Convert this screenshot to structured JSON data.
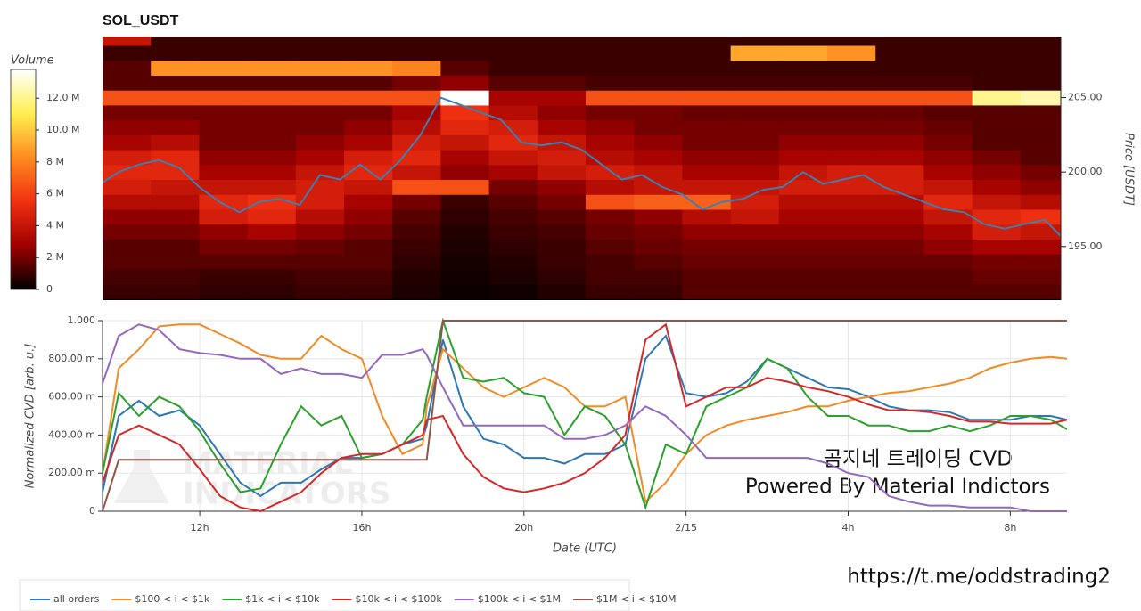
{
  "chart_data": [
    {
      "type": "heatmap",
      "title": "SOL_USDT",
      "y_label": "Price [USDT]",
      "xlim": [
        9.6,
        33.4
      ],
      "ylim": [
        191.4,
        209.1
      ],
      "yticks": [
        {
          "value": 195,
          "label": "195.00"
        },
        {
          "value": 200,
          "label": "200.00"
        },
        {
          "value": 205,
          "label": "205.00"
        }
      ],
      "x_bins": [
        9.6,
        10.8,
        12,
        13.2,
        14.4,
        15.6,
        16.8,
        18,
        19.2,
        20.4,
        21.6,
        22.8,
        24,
        25.2,
        26.4,
        27.6,
        28.8,
        30,
        31.2,
        32.4,
        33.6
      ],
      "y_bins": [
        191.5,
        192.5,
        193.5,
        194.5,
        195.5,
        196.5,
        197.5,
        198.5,
        199.5,
        200.5,
        201.5,
        202.5,
        203.5,
        204.5,
        205.5,
        206.5,
        207.5,
        208.5,
        209.5
      ],
      "z": [
        [
          1,
          1,
          0.8,
          0.8,
          1,
          1,
          0.5,
          0.2,
          0.3,
          0.6,
          1,
          1,
          1.5,
          1.5,
          1.5,
          1.5,
          1.5,
          1.5,
          1.5,
          1.5
        ],
        [
          1.2,
          1.2,
          1,
          1,
          1.2,
          1.2,
          0.6,
          0.3,
          0.5,
          0.8,
          1.2,
          1.2,
          1.5,
          1.5,
          1.5,
          1.5,
          1.5,
          1.5,
          1.8,
          1.8
        ],
        [
          1.5,
          1.5,
          1.5,
          1.5,
          1.5,
          1.5,
          0.8,
          0.4,
          0.6,
          1,
          1.2,
          1.5,
          1.8,
          1.8,
          1.8,
          1.8,
          1.8,
          1.8,
          2,
          2
        ],
        [
          1.5,
          1.5,
          2,
          2,
          1.8,
          1.5,
          1,
          0.5,
          0.8,
          1,
          1.5,
          1.8,
          2,
          2,
          2,
          2,
          2,
          2.5,
          3,
          3
        ],
        [
          2,
          2,
          2.5,
          3,
          2.5,
          2,
          1.2,
          0.6,
          1,
          1.2,
          1.8,
          2,
          2.5,
          2.5,
          2.5,
          2.5,
          2.5,
          3,
          4.5,
          4
        ],
        [
          2.5,
          2.5,
          4.5,
          5,
          3.5,
          2.5,
          1.5,
          0.8,
          1.2,
          1.5,
          2,
          2.5,
          3.5,
          4,
          3,
          3,
          3,
          4,
          5,
          5.5
        ],
        [
          3.5,
          3.5,
          5,
          5.5,
          4.5,
          3,
          2,
          1,
          1.5,
          2,
          6.5,
          7,
          7,
          4.5,
          3.5,
          3.5,
          3.5,
          5,
          4,
          3.5
        ],
        [
          4.5,
          4,
          4,
          4,
          4.5,
          4,
          6.5,
          6.5,
          2,
          2.5,
          3.5,
          4,
          4,
          4,
          4.5,
          4.5,
          4.5,
          4,
          3,
          2.5
        ],
        [
          5,
          5,
          3,
          3,
          4,
          5,
          4,
          2.5,
          3,
          4,
          4.5,
          4,
          3,
          3,
          4,
          4.5,
          4.5,
          3,
          2.5,
          2
        ],
        [
          4.5,
          5,
          2.5,
          2.5,
          3,
          4.5,
          5,
          3,
          4,
          4.5,
          3.5,
          3,
          2.5,
          2.5,
          3,
          3,
          3,
          2.5,
          2,
          1.5
        ],
        [
          3,
          3.5,
          2,
          2,
          2.5,
          3,
          4.5,
          4,
          5,
          4,
          3,
          2.5,
          2,
          2,
          2.5,
          2.5,
          2.5,
          2,
          1.5,
          1.5
        ],
        [
          2.5,
          2.5,
          2,
          2,
          2,
          2.5,
          3.5,
          5,
          4.5,
          3,
          2.5,
          2,
          2,
          2,
          2,
          2,
          2,
          1.8,
          1.5,
          1.5
        ],
        [
          2,
          2,
          2,
          2,
          2,
          2,
          3,
          5.5,
          3.5,
          2.5,
          2,
          2,
          1.8,
          1.8,
          1.8,
          1.8,
          1.8,
          1.5,
          1.5,
          1.5
        ],
        [
          6.5,
          6.5,
          6.5,
          6.5,
          6.5,
          6.5,
          6.5,
          13.8,
          3,
          3,
          6.5,
          6.5,
          6.5,
          6.5,
          6.5,
          6.5,
          6.5,
          6.5,
          12,
          12.5
        ],
        [
          1.5,
          1.5,
          1.5,
          1.5,
          1.5,
          1.5,
          2,
          2.5,
          1.5,
          1.5,
          1.2,
          1.2,
          1.2,
          1.2,
          1.2,
          1.2,
          1.2,
          1.2,
          1,
          1
        ],
        [
          1.5,
          8.5,
          8.5,
          8.5,
          8.5,
          8.5,
          8,
          1.5,
          1,
          1,
          1,
          1,
          1,
          1,
          1,
          1,
          1,
          1,
          1,
          1
        ],
        [
          1,
          1,
          1,
          1,
          1,
          1,
          1,
          1,
          1,
          1,
          1,
          1,
          1,
          9,
          9,
          8.5,
          1,
          1,
          1,
          1
        ],
        [
          4,
          1,
          1,
          1,
          1,
          1,
          1,
          1,
          1,
          1,
          1,
          1,
          1,
          1,
          1,
          1,
          1,
          1,
          1,
          1
        ]
      ],
      "colormap": [
        "#000000",
        "#a00000",
        "#f03010",
        "#ff8c20",
        "#ffef50",
        "#ffffff"
      ],
      "colorbar": {
        "title": "Volume",
        "lim": [
          0,
          13.8
        ],
        "ticks": [
          0,
          {
            "value": 2,
            "label": "2 M"
          },
          {
            "value": 4,
            "label": "4 M"
          },
          {
            "value": 6,
            "label": "6 M"
          },
          {
            "value": 8,
            "label": "8 M"
          },
          {
            "value": 10,
            "label": "10.0 M"
          },
          {
            "value": 12,
            "label": "12.0 M"
          }
        ]
      },
      "price": {
        "color": "#3d7fb0",
        "x": [
          9.6,
          10,
          10.5,
          11,
          11.5,
          12,
          12.5,
          13,
          13.5,
          14,
          14.5,
          15,
          15.5,
          16,
          16.5,
          17,
          17.5,
          18,
          18.5,
          19,
          19.5,
          20,
          20.5,
          21,
          21.5,
          22,
          22.5,
          23,
          23.5,
          24,
          24.5,
          25,
          25.5,
          26,
          26.5,
          27,
          27.5,
          28,
          28.5,
          29,
          29.5,
          30,
          30.5,
          31,
          31.5,
          32,
          32.5,
          33,
          33.4
        ],
        "values": [
          199.3,
          200,
          200.5,
          200.8,
          200.3,
          199,
          198,
          197.3,
          198,
          198.2,
          197.8,
          199.8,
          199.5,
          200.5,
          199.5,
          200.8,
          202.5,
          205,
          204.5,
          204,
          203.5,
          202,
          201.8,
          202,
          201.5,
          200.5,
          199.5,
          199.8,
          199,
          198.5,
          197.5,
          198,
          198.2,
          198.8,
          199,
          200,
          199.2,
          199.5,
          199.8,
          199,
          198.5,
          198,
          197.5,
          197.3,
          196.5,
          196.2,
          196.5,
          196.8,
          195.7
        ]
      }
    },
    {
      "type": "line",
      "x_label": "Date (UTC)",
      "y_label": "Normalized CVD [arb. u.]",
      "xlim": [
        9.6,
        33.4
      ],
      "ylim": [
        0,
        1
      ],
      "grid": true,
      "xticks": [
        {
          "value": 12,
          "label": "12h"
        },
        {
          "value": 16,
          "label": "16h"
        },
        {
          "value": 20,
          "label": "20h"
        },
        {
          "value": 24,
          "label": "2/15"
        },
        {
          "value": 28,
          "label": "4h"
        },
        {
          "value": 32,
          "label": "8h"
        }
      ],
      "yticks": [
        0,
        {
          "value": 0.2,
          "label": "200.00 m"
        },
        {
          "value": 0.4,
          "label": "400.00 m"
        },
        {
          "value": 0.6,
          "label": "600.00 m"
        },
        {
          "value": 0.8,
          "label": "800.00 m"
        },
        {
          "value": 1,
          "label": "1.000"
        }
      ],
      "x": [
        9.6,
        10,
        10.5,
        11,
        11.5,
        12,
        12.5,
        13,
        13.5,
        14,
        14.5,
        15,
        15.5,
        16,
        16.5,
        17,
        17.5,
        17.6,
        18,
        18.5,
        19,
        19.5,
        20,
        20.5,
        21,
        21.5,
        22,
        22.5,
        23,
        23.5,
        24,
        24.5,
        25,
        25.5,
        26,
        26.5,
        27,
        27.5,
        28,
        28.5,
        29,
        29.5,
        30,
        30.5,
        31,
        31.5,
        32,
        32.5,
        33,
        33.4
      ],
      "series": [
        {
          "name": "all orders",
          "color": "#2c77b4",
          "values": [
            0.1,
            0.5,
            0.58,
            0.5,
            0.53,
            0.45,
            0.3,
            0.15,
            0.08,
            0.15,
            0.15,
            0.22,
            0.28,
            0.28,
            0.3,
            0.35,
            0.38,
            0.45,
            0.9,
            0.55,
            0.38,
            0.35,
            0.28,
            0.28,
            0.25,
            0.3,
            0.3,
            0.35,
            0.8,
            0.92,
            0.62,
            0.6,
            0.62,
            0.68,
            0.8,
            0.75,
            0.7,
            0.65,
            0.64,
            0.6,
            0.55,
            0.53,
            0.53,
            0.52,
            0.48,
            0.48,
            0.48,
            0.5,
            0.5,
            0.48
          ]
        },
        {
          "name": "$100 < i < $1k",
          "color": "#f28a24",
          "values": [
            0.2,
            0.75,
            0.85,
            0.97,
            0.98,
            0.98,
            0.93,
            0.88,
            0.82,
            0.8,
            0.8,
            0.92,
            0.85,
            0.8,
            0.5,
            0.3,
            0.35,
            0.55,
            0.85,
            0.75,
            0.65,
            0.6,
            0.65,
            0.7,
            0.65,
            0.55,
            0.55,
            0.6,
            0.05,
            0.15,
            0.3,
            0.4,
            0.45,
            0.48,
            0.5,
            0.52,
            0.55,
            0.55,
            0.58,
            0.6,
            0.62,
            0.63,
            0.65,
            0.67,
            0.7,
            0.75,
            0.78,
            0.8,
            0.81,
            0.8
          ]
        },
        {
          "name": "$1k < i < $10k",
          "color": "#2ca02c",
          "values": [
            0.2,
            0.62,
            0.5,
            0.6,
            0.55,
            0.42,
            0.25,
            0.1,
            0.12,
            0.35,
            0.55,
            0.45,
            0.5,
            0.28,
            0.3,
            0.35,
            0.48,
            0.6,
            1,
            0.7,
            0.68,
            0.7,
            0.62,
            0.6,
            0.4,
            0.55,
            0.5,
            0.35,
            0.02,
            0.35,
            0.3,
            0.55,
            0.6,
            0.65,
            0.8,
            0.75,
            0.6,
            0.5,
            0.5,
            0.45,
            0.45,
            0.42,
            0.42,
            0.45,
            0.42,
            0.45,
            0.5,
            0.5,
            0.48,
            0.43
          ]
        },
        {
          "name": "$10k < i < $100k",
          "color": "#d62728",
          "values": [
            0.15,
            0.4,
            0.45,
            0.4,
            0.35,
            0.22,
            0.08,
            0.02,
            0,
            0.05,
            0.1,
            0.2,
            0.28,
            0.3,
            0.3,
            0.35,
            0.4,
            0.48,
            0.5,
            0.3,
            0.18,
            0.12,
            0.1,
            0.12,
            0.15,
            0.2,
            0.28,
            0.4,
            0.9,
            0.98,
            0.55,
            0.6,
            0.65,
            0.65,
            0.7,
            0.68,
            0.65,
            0.63,
            0.6,
            0.56,
            0.53,
            0.53,
            0.52,
            0.5,
            0.47,
            0.47,
            0.46,
            0.46,
            0.46,
            0.48
          ]
        },
        {
          "name": "$100k < i < $1M",
          "color": "#9467bd",
          "values": [
            0.67,
            0.92,
            0.98,
            0.95,
            0.85,
            0.83,
            0.82,
            0.8,
            0.8,
            0.72,
            0.75,
            0.72,
            0.72,
            0.7,
            0.82,
            0.82,
            0.85,
            0.82,
            0.65,
            0.45,
            0.45,
            0.45,
            0.45,
            0.45,
            0.38,
            0.38,
            0.4,
            0.45,
            0.55,
            0.5,
            0.4,
            0.28,
            0.28,
            0.28,
            0.28,
            0.28,
            0.28,
            0.25,
            0.2,
            0.18,
            0.08,
            0.05,
            0.03,
            0.03,
            0.02,
            0.02,
            0.02,
            0,
            0,
            0
          ]
        },
        {
          "name": "$1M < i < $10M",
          "color": "#8c564b",
          "values": [
            0,
            0.27,
            0.27,
            0.27,
            0.27,
            0.27,
            0.27,
            0.27,
            0.27,
            0.27,
            0.27,
            0.27,
            0.27,
            0.27,
            0.27,
            0.27,
            0.27,
            0.27,
            1,
            1,
            1,
            1,
            1,
            1,
            1,
            1,
            1,
            1,
            1,
            1,
            1,
            1,
            1,
            1,
            1,
            1,
            1,
            1,
            1,
            1,
            1,
            1,
            1,
            1,
            1,
            1,
            1,
            1,
            1,
            1
          ]
        }
      ]
    }
  ],
  "watermark": [
    "MATERIAL",
    "INDICATORS"
  ],
  "annotation": [
    "곰지네 트레이딩 CVD",
    "Powered By Material Indictors"
  ],
  "url": "https://t.me/oddstrading2"
}
